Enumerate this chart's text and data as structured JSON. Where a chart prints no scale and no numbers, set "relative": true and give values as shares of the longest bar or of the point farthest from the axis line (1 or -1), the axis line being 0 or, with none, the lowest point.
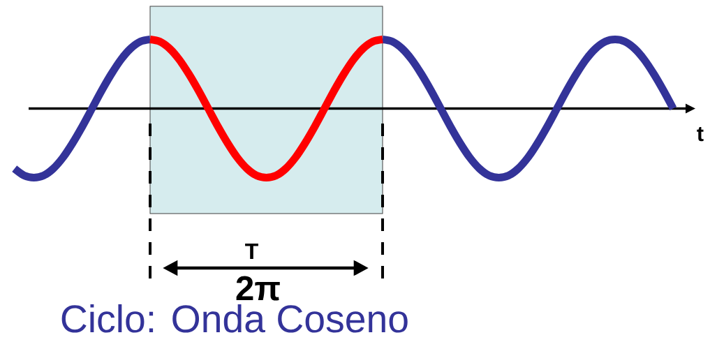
{
  "chart_data": {
    "type": "line",
    "relative": true,
    "title": "Ciclo: Onda Coseno",
    "xlabel": "t",
    "categories": [
      null,
      null,
      null,
      null,
      null,
      null,
      null,
      null,
      null,
      null,
      null,
      null,
      null,
      null,
      null,
      null,
      null,
      null,
      null,
      null,
      null,
      null,
      null,
      null,
      null,
      null,
      null,
      null,
      null,
      null,
      null,
      null,
      null,
      null,
      null,
      null,
      null,
      null,
      null,
      null,
      null,
      null,
      null,
      null,
      null,
      null,
      null,
      null,
      null,
      null,
      null,
      null,
      null,
      null,
      null,
      null,
      null,
      null,
      null,
      null,
      null,
      null,
      null,
      null,
      null,
      null,
      null,
      null,
      null
    ],
    "series": [
      {
        "color": "#333399",
        "values": [
          -0.87,
          -0.97,
          -1,
          -0.97,
          -0.87,
          -0.71,
          -0.5,
          -0.26,
          0,
          0.26,
          0.5,
          0.71,
          0.87,
          0.97,
          1,
          null,
          null,
          null,
          null,
          null,
          null,
          null,
          null,
          null,
          null,
          null,
          null,
          null,
          null,
          null,
          null,
          null,
          null,
          null,
          null,
          null,
          null,
          null,
          1,
          0.97,
          0.87,
          0.71,
          0.5,
          0.26,
          0,
          -0.26,
          -0.5,
          -0.71,
          -0.87,
          -0.97,
          -1,
          -0.97,
          -0.87,
          -0.71,
          -0.5,
          -0.26,
          0,
          0.26,
          0.5,
          0.71,
          0.87,
          0.97,
          1,
          0.97,
          0.87,
          0.71,
          0.5,
          0.26,
          0
        ]
      },
      {
        "color": "#ff0000",
        "values": [
          null,
          null,
          null,
          null,
          null,
          null,
          null,
          null,
          null,
          null,
          null,
          null,
          null,
          null,
          1,
          0.97,
          0.87,
          0.71,
          0.5,
          0.26,
          0,
          -0.26,
          -0.5,
          -0.71,
          -0.87,
          -0.97,
          -1,
          -0.97,
          -0.87,
          -0.71,
          -0.5,
          -0.26,
          0,
          0.26,
          0.5,
          0.71,
          0.87,
          0.97,
          1,
          null,
          null,
          null,
          null,
          null,
          null,
          null,
          null,
          null,
          null,
          null,
          null,
          null,
          null,
          null,
          null,
          null,
          null,
          null,
          null,
          null,
          null,
          null,
          null,
          null,
          null,
          null,
          null,
          null,
          null
        ]
      }
    ],
    "annotations": [
      "T",
      "2π"
    ]
  }
}
